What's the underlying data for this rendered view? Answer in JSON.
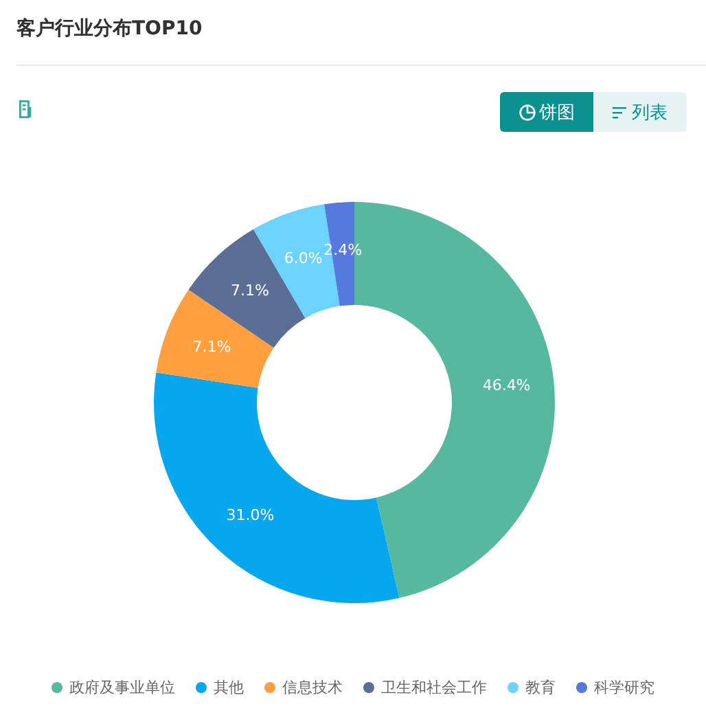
{
  "chart_data": {
    "type": "donut",
    "title": "客户行业分布TOP10",
    "categories": [
      "政府及事业单位",
      "其他",
      "信息技术",
      "卫生和社会工作",
      "教育",
      "科学研究"
    ],
    "values": [
      46.4,
      31.0,
      7.1,
      7.1,
      6.0,
      2.4
    ],
    "colors": [
      "#56b89f",
      "#06a7ef",
      "#ff9f3e",
      "#5b6e96",
      "#6bd3fe",
      "#5679e0"
    ],
    "value_labels": [
      "46.4%",
      "31.0%",
      "7.1%",
      "7.1%",
      "6.0%",
      "2.4%"
    ],
    "legend": "bottom",
    "annotations": [
      "饼图",
      "列表"
    ]
  }
}
